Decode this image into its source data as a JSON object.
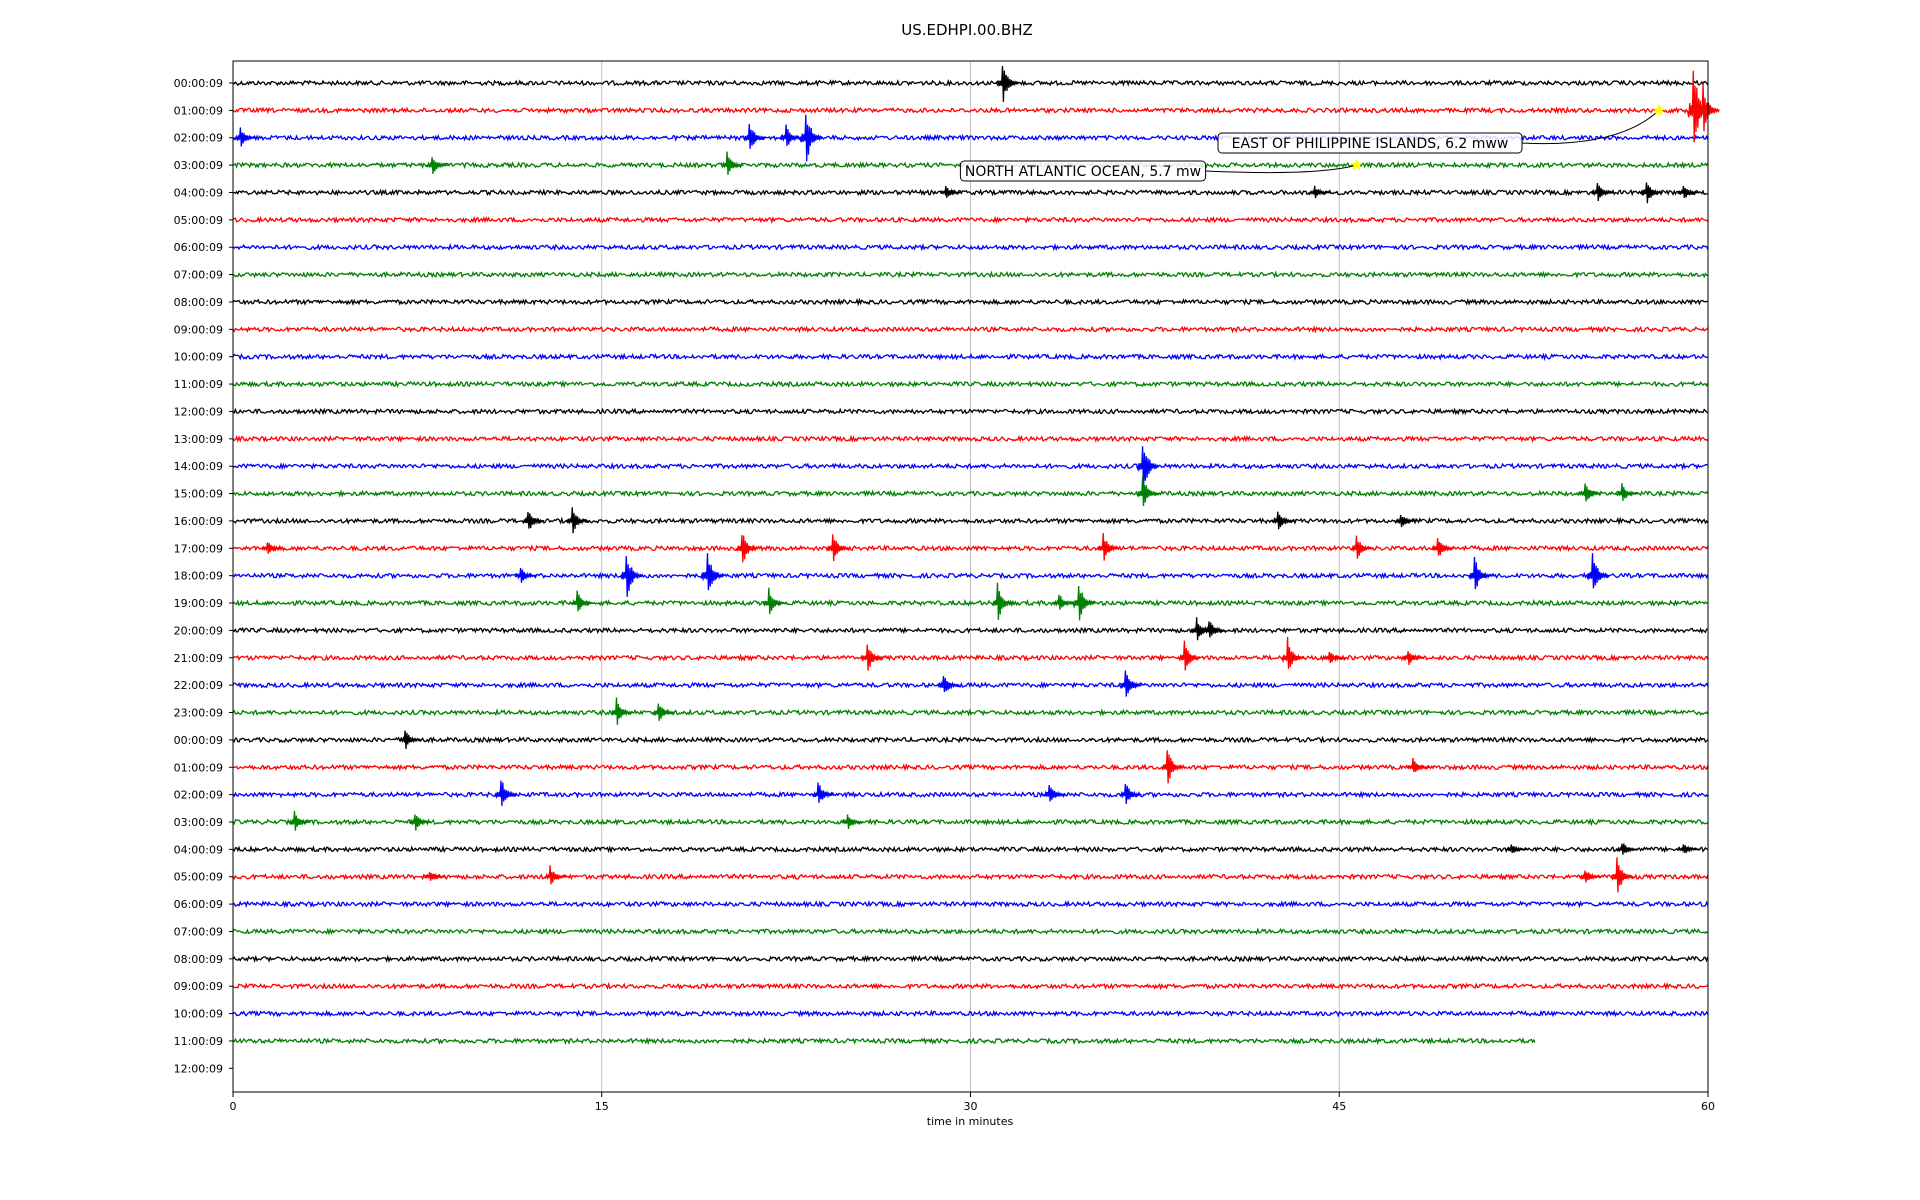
{
  "chart_data": {
    "type": "line",
    "title": "US.EDHPI.00.BHZ",
    "xlabel": "time in minutes",
    "ylabel": "",
    "xlim": [
      0,
      60
    ],
    "x_ticks": [
      "0",
      "15",
      "30",
      "45",
      "60"
    ],
    "x_tick_values": [
      0,
      15,
      30,
      45,
      60
    ],
    "grid": "vertical",
    "row_labels": [
      "00:00:09",
      "01:00:09",
      "02:00:09",
      "03:00:09",
      "04:00:09",
      "05:00:09",
      "06:00:09",
      "07:00:09",
      "08:00:09",
      "09:00:09",
      "10:00:09",
      "11:00:09",
      "12:00:09",
      "13:00:09",
      "14:00:09",
      "15:00:09",
      "16:00:09",
      "17:00:09",
      "18:00:09",
      "19:00:09",
      "20:00:09",
      "21:00:09",
      "22:00:09",
      "23:00:09",
      "00:00:09",
      "01:00:09",
      "02:00:09",
      "03:00:09",
      "04:00:09",
      "05:00:09",
      "06:00:09",
      "07:00:09",
      "08:00:09",
      "09:00:09",
      "10:00:09",
      "11:00:09",
      "12:00:09"
    ],
    "trace_colors": [
      "#000000",
      "#ff0000",
      "#0000ff",
      "#008000"
    ],
    "trace_end_minutes": [
      60,
      60,
      60,
      60,
      60,
      60,
      60,
      60,
      60,
      60,
      60,
      60,
      60,
      60,
      60,
      60,
      60,
      60,
      60,
      60,
      60,
      60,
      60,
      60,
      60,
      60,
      60,
      60,
      60,
      60,
      60,
      60,
      60,
      60,
      60,
      53,
      0
    ],
    "events": [
      {
        "row": 0,
        "minute": 31.3,
        "amp": 1.0
      },
      {
        "row": 1,
        "minute": 59.4,
        "amp": 2.2
      },
      {
        "row": 1,
        "minute": 59.8,
        "amp": 1.2
      },
      {
        "row": 2,
        "minute": 23.3,
        "amp": 1.4
      },
      {
        "row": 2,
        "minute": 21,
        "amp": 0.8
      },
      {
        "row": 2,
        "minute": 22.5,
        "amp": 0.6
      },
      {
        "row": 2,
        "minute": 0.3,
        "amp": 0.5
      },
      {
        "row": 3,
        "minute": 8.1,
        "amp": 0.5
      },
      {
        "row": 3,
        "minute": 20.1,
        "amp": 0.6
      },
      {
        "row": 4,
        "minute": 55.5,
        "amp": 0.5
      },
      {
        "row": 4,
        "minute": 57.5,
        "amp": 0.6
      },
      {
        "row": 4,
        "minute": 29,
        "amp": 0.3
      },
      {
        "row": 4,
        "minute": 44,
        "amp": 0.3
      },
      {
        "row": 4,
        "minute": 59,
        "amp": 0.4
      },
      {
        "row": 14,
        "minute": 37,
        "amp": 1.4
      },
      {
        "row": 15,
        "minute": 37,
        "amp": 0.8
      },
      {
        "row": 15,
        "minute": 55,
        "amp": 0.5
      },
      {
        "row": 15,
        "minute": 56.5,
        "amp": 0.5
      },
      {
        "row": 16,
        "minute": 12,
        "amp": 0.6
      },
      {
        "row": 16,
        "minute": 13.8,
        "amp": 0.7
      },
      {
        "row": 16,
        "minute": 42.5,
        "amp": 0.5
      },
      {
        "row": 16,
        "minute": 47.5,
        "amp": 0.4
      },
      {
        "row": 17,
        "minute": 20.7,
        "amp": 0.9
      },
      {
        "row": 17,
        "minute": 24.4,
        "amp": 0.8
      },
      {
        "row": 17,
        "minute": 35.4,
        "amp": 0.7
      },
      {
        "row": 17,
        "minute": 45.7,
        "amp": 0.6
      },
      {
        "row": 17,
        "minute": 49,
        "amp": 0.6
      },
      {
        "row": 17,
        "minute": 1.4,
        "amp": 0.4
      },
      {
        "row": 18,
        "minute": 16,
        "amp": 1.2
      },
      {
        "row": 18,
        "minute": 19.3,
        "amp": 1.1
      },
      {
        "row": 18,
        "minute": 50.5,
        "amp": 0.9
      },
      {
        "row": 18,
        "minute": 55.3,
        "amp": 1.1
      },
      {
        "row": 18,
        "minute": 11.7,
        "amp": 0.4
      },
      {
        "row": 19,
        "minute": 14,
        "amp": 0.6
      },
      {
        "row": 19,
        "minute": 21.8,
        "amp": 0.7
      },
      {
        "row": 19,
        "minute": 31.1,
        "amp": 0.9
      },
      {
        "row": 19,
        "minute": 34.4,
        "amp": 1.0
      },
      {
        "row": 19,
        "minute": 33.6,
        "amp": 0.5
      },
      {
        "row": 20,
        "minute": 39.2,
        "amp": 0.6
      },
      {
        "row": 20,
        "minute": 39.7,
        "amp": 0.6
      },
      {
        "row": 21,
        "minute": 25.8,
        "amp": 0.8
      },
      {
        "row": 21,
        "minute": 38.7,
        "amp": 0.8
      },
      {
        "row": 21,
        "minute": 42.9,
        "amp": 0.9
      },
      {
        "row": 21,
        "minute": 44.6,
        "amp": 0.4
      },
      {
        "row": 21,
        "minute": 47.8,
        "amp": 0.4
      },
      {
        "row": 22,
        "minute": 28.9,
        "amp": 0.6
      },
      {
        "row": 22,
        "minute": 36.3,
        "amp": 0.8
      },
      {
        "row": 23,
        "minute": 15.6,
        "amp": 0.7
      },
      {
        "row": 23,
        "minute": 17.3,
        "amp": 0.6
      },
      {
        "row": 24,
        "minute": 7,
        "amp": 0.5
      },
      {
        "row": 25,
        "minute": 38,
        "amp": 0.9
      },
      {
        "row": 25,
        "minute": 48,
        "amp": 0.4
      },
      {
        "row": 26,
        "minute": 10.9,
        "amp": 0.8
      },
      {
        "row": 26,
        "minute": 23.8,
        "amp": 0.6
      },
      {
        "row": 26,
        "minute": 33.2,
        "amp": 0.6
      },
      {
        "row": 26,
        "minute": 36.3,
        "amp": 0.6
      },
      {
        "row": 27,
        "minute": 2.5,
        "amp": 0.5
      },
      {
        "row": 27,
        "minute": 7.4,
        "amp": 0.5
      },
      {
        "row": 27,
        "minute": 25,
        "amp": 0.4
      },
      {
        "row": 28,
        "minute": 52,
        "amp": 0.3
      },
      {
        "row": 28,
        "minute": 56.5,
        "amp": 0.4
      },
      {
        "row": 28,
        "minute": 59,
        "amp": 0.3
      },
      {
        "row": 29,
        "minute": 12.9,
        "amp": 0.5
      },
      {
        "row": 29,
        "minute": 8,
        "amp": 0.3
      },
      {
        "row": 29,
        "minute": 56.3,
        "amp": 0.9
      },
      {
        "row": 29,
        "minute": 55,
        "amp": 0.4
      }
    ],
    "annotations": [
      {
        "text": "EAST OF PHILIPPINE ISLANDS, 6.2 mww",
        "row": 1,
        "minute": 58
      },
      {
        "text": "NORTH ATLANTIC OCEAN, 5.7 mw",
        "row": 3,
        "minute": 45.7
      }
    ]
  }
}
